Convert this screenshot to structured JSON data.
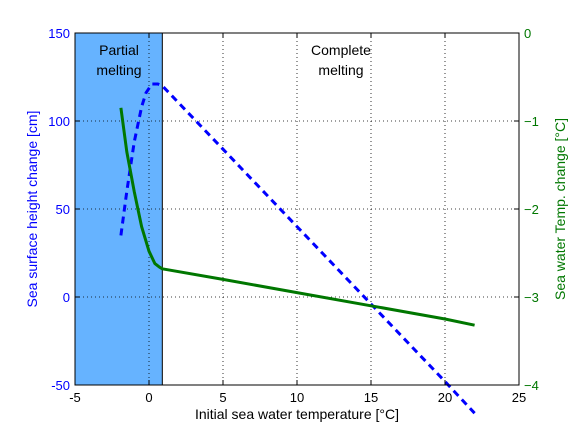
{
  "chart_data": {
    "type": "line",
    "xlabel": "Initial sea water temperature [°C]",
    "ylabel_left": "Sea surface height change [cm]",
    "ylabel_right": "Sea water Temp. change [°C]",
    "xlim": [
      -5,
      25
    ],
    "ylim_left": [
      -50,
      150
    ],
    "ylim_right": [
      -4,
      0
    ],
    "x_ticks": [
      -5,
      0,
      5,
      10,
      15,
      20,
      25
    ],
    "y_left_ticks": [
      -50,
      0,
      50,
      100,
      150
    ],
    "y_right_ticks": [
      -4,
      -3,
      -2,
      -1,
      0
    ],
    "grid": true,
    "shaded_region": {
      "x_from": -5,
      "x_to": 0.9,
      "color": "#66b3ff"
    },
    "annotations": [
      {
        "id": "partial",
        "lines": [
          "Partial",
          "melting"
        ]
      },
      {
        "id": "complete",
        "lines": [
          "Complete",
          "melting"
        ]
      }
    ],
    "series": [
      {
        "axis": "left",
        "style": "dashed",
        "color": "#0000ff",
        "x": [
          -1.9,
          -1.5,
          -1.0,
          -0.5,
          -0.2,
          0.2,
          0.6,
          0.9,
          5,
          10,
          15,
          20,
          22
        ],
        "y": [
          35,
          60,
          88,
          108,
          116,
          121,
          121,
          120,
          84,
          40,
          -4,
          -48,
          -66
        ]
      },
      {
        "axis": "right",
        "style": "solid",
        "color": "#007700",
        "x": [
          -1.9,
          -1.5,
          -1.0,
          -0.5,
          0.0,
          0.4,
          0.7,
          0.9,
          5,
          10,
          15,
          20,
          22
        ],
        "y": [
          -0.85,
          -1.35,
          -1.8,
          -2.2,
          -2.48,
          -2.62,
          -2.66,
          -2.68,
          -2.8,
          -2.95,
          -3.1,
          -3.25,
          -3.32
        ]
      }
    ]
  }
}
